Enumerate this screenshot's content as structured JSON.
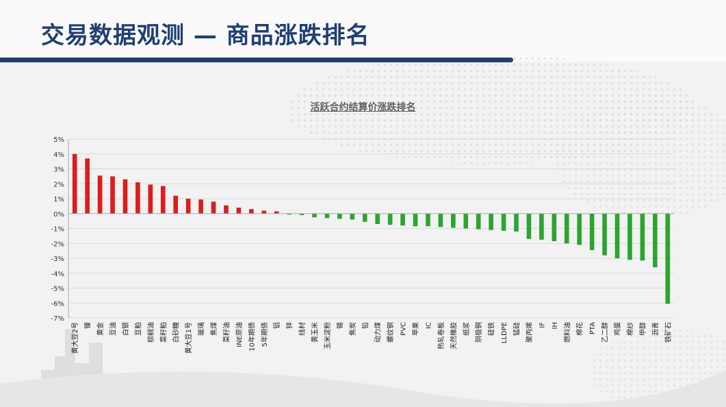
{
  "page_title": "交易数据观测 — 商品涨跌排名",
  "chart_data": {
    "type": "bar",
    "title": "活跃合约结算价涨跌排名",
    "xlabel": "",
    "ylabel": "",
    "ylim": [
      -7,
      5
    ],
    "yticks": [
      5,
      4,
      3,
      2,
      1,
      0,
      -1,
      -2,
      -3,
      -4,
      -5,
      -6,
      -7
    ],
    "tick_suffix": "%",
    "grid": true,
    "colors": {
      "positive": "#e01b1b",
      "negative": "#2aa52f",
      "axis": "#aaaaaa",
      "grid": "#d9d9d9"
    },
    "categories": [
      "黄大豆2号",
      "镍",
      "黄金",
      "豆油",
      "白银",
      "豆粕",
      "棕榈油",
      "菜籽粕",
      "白砂糖",
      "黄大豆1号",
      "玻璃",
      "焦煤",
      "菜籽油",
      "INE原油",
      "10年期债",
      "5年期债",
      "铝",
      "锌",
      "线材",
      "黄玉米",
      "玉米淀粉",
      "锡",
      "焦炭",
      "铅",
      "动力煤",
      "螺纹钢",
      "PVC",
      "苹果",
      "IC",
      "热轧卷板",
      "天然橡胶",
      "纸浆",
      "阴极铜",
      "硅铁",
      "LLDPE",
      "锰硅",
      "聚丙烯",
      "IF",
      "IH",
      "燃料油",
      "棉花",
      "PTA",
      "乙二醇",
      "鸡蛋",
      "棉纱",
      "甲醇",
      "沥青",
      "铁矿石"
    ],
    "values": [
      4.0,
      3.7,
      2.55,
      2.5,
      2.3,
      2.1,
      1.95,
      1.85,
      1.2,
      1.0,
      0.95,
      0.8,
      0.55,
      0.4,
      0.3,
      0.2,
      0.15,
      -0.05,
      -0.1,
      -0.25,
      -0.3,
      -0.35,
      -0.4,
      -0.55,
      -0.7,
      -0.75,
      -0.8,
      -0.85,
      -0.85,
      -0.9,
      -0.95,
      -1.0,
      -1.05,
      -1.1,
      -1.15,
      -1.2,
      -1.7,
      -1.75,
      -1.85,
      -2.0,
      -2.1,
      -2.45,
      -2.8,
      -3.0,
      -3.1,
      -3.15,
      -3.6,
      -6.05
    ]
  }
}
